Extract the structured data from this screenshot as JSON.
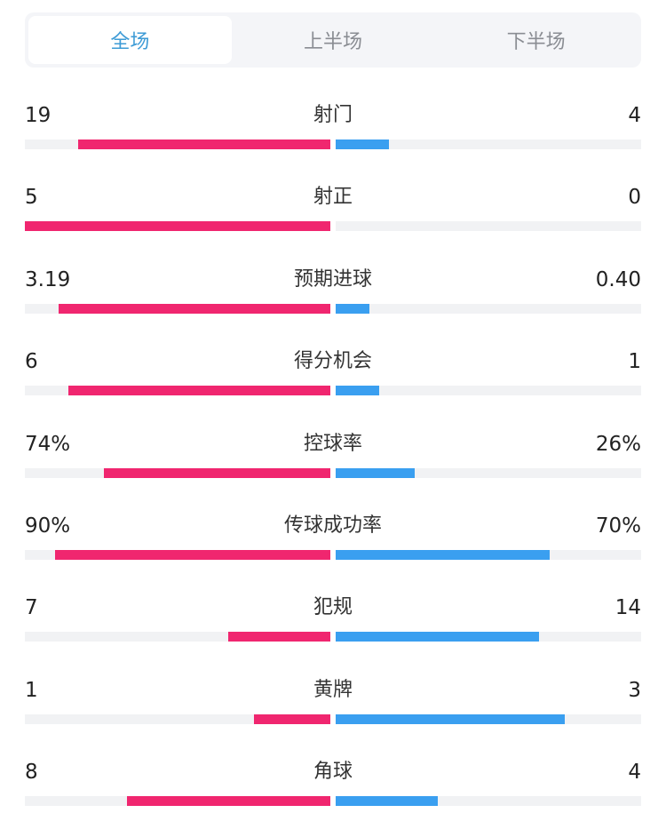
{
  "tabs": [
    {
      "label": "全场",
      "active": true
    },
    {
      "label": "上半场",
      "active": false
    },
    {
      "label": "下半场",
      "active": false
    }
  ],
  "colors": {
    "home": "#f0266f",
    "away": "#3a9ff0",
    "active_tab": "#3d9bd6"
  },
  "stats": [
    {
      "label": "射门",
      "home": "19",
      "away": "4"
    },
    {
      "label": "射正",
      "home": "5",
      "away": "0"
    },
    {
      "label": "预期进球",
      "home": "3.19",
      "away": "0.40"
    },
    {
      "label": "得分机会",
      "home": "6",
      "away": "1"
    },
    {
      "label": "控球率",
      "home": "74%",
      "away": "26%"
    },
    {
      "label": "传球成功率",
      "home": "90%",
      "away": "70%"
    },
    {
      "label": "犯规",
      "home": "7",
      "away": "14"
    },
    {
      "label": "黄牌",
      "home": "1",
      "away": "3"
    },
    {
      "label": "角球",
      "home": "8",
      "away": "4"
    }
  ]
}
